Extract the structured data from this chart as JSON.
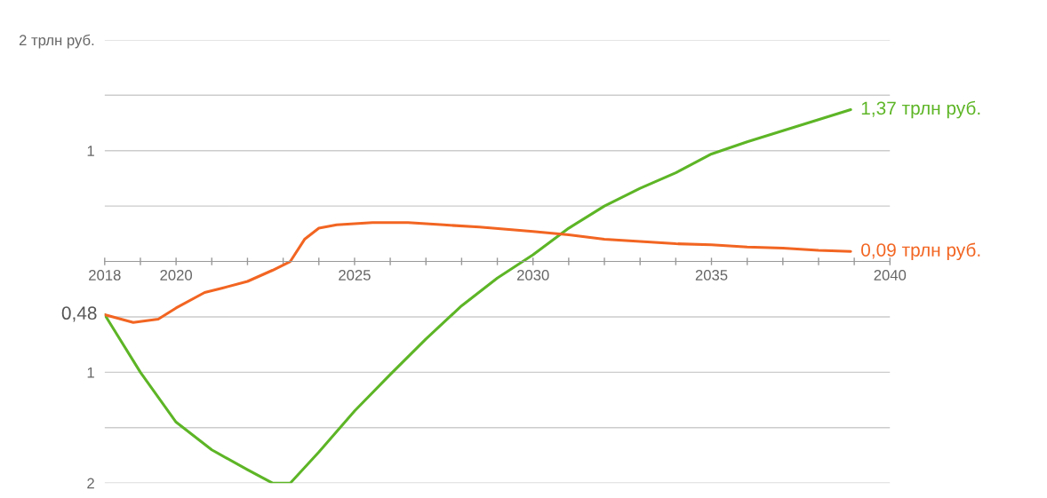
{
  "chart_data": {
    "type": "line",
    "series": [
      {
        "color": "#5db526",
        "x": [
          2018,
          2019,
          2020,
          2021,
          2022,
          2022.7,
          2023.2,
          2024,
          2025,
          2026,
          2027,
          2028,
          2029,
          2030,
          2031,
          2032,
          2033,
          2034,
          2035,
          2036,
          2037,
          2038,
          2038.9
        ],
        "values": [
          -0.48,
          -1.0,
          -1.45,
          -1.7,
          -1.88,
          -2.0,
          -2.0,
          -1.72,
          -1.35,
          -1.02,
          -0.7,
          -0.4,
          -0.15,
          0.06,
          0.3,
          0.5,
          0.66,
          0.8,
          0.97,
          1.08,
          1.18,
          1.28,
          1.37
        ]
      },
      {
        "color": "#f26522",
        "x": [
          2018,
          2018.8,
          2019.5,
          2020,
          2020.8,
          2021.3,
          2022,
          2022.7,
          2023.2,
          2023.6,
          2024,
          2024.5,
          2025.5,
          2026.5,
          2027.5,
          2028.5,
          2030,
          2031,
          2032,
          2033,
          2034,
          2035,
          2036,
          2037,
          2038,
          2038.9
        ],
        "values": [
          -0.48,
          -0.55,
          -0.52,
          -0.42,
          -0.28,
          -0.24,
          -0.18,
          -0.08,
          0.0,
          0.2,
          0.3,
          0.33,
          0.35,
          0.35,
          0.33,
          0.31,
          0.27,
          0.24,
          0.2,
          0.18,
          0.16,
          0.15,
          0.13,
          0.12,
          0.1,
          0.09
        ]
      }
    ],
    "xlim": [
      2018,
      2040
    ],
    "xticks": [
      2018,
      {
        "value": 2019,
        "label": null
      },
      2020,
      {
        "value": 2021,
        "label": null
      },
      {
        "value": 2022,
        "label": null
      },
      {
        "value": 2023,
        "label": null
      },
      {
        "value": 2024,
        "label": null
      },
      2025,
      {
        "value": 2026,
        "label": null
      },
      {
        "value": 2027,
        "label": null
      },
      {
        "value": 2028,
        "label": null
      },
      {
        "value": 2029,
        "label": null
      },
      2030,
      {
        "value": 2031,
        "label": null
      },
      {
        "value": 2032,
        "label": null
      },
      {
        "value": 2033,
        "label": null
      },
      {
        "value": 2034,
        "label": null
      },
      2035,
      {
        "value": 2036,
        "label": null
      },
      {
        "value": 2037,
        "label": null
      },
      {
        "value": 2038,
        "label": null
      },
      {
        "value": 2039,
        "label": null
      },
      2040
    ],
    "ylim": [
      -2,
      2
    ],
    "yticks": [
      {
        "value": -2,
        "label": "2"
      },
      {
        "value": -1.5,
        "label": null
      },
      {
        "value": -1,
        "label": "1"
      },
      {
        "value": -0.5,
        "label": null
      },
      {
        "value": 0.5,
        "label": null
      },
      {
        "value": 1,
        "label": "1"
      },
      {
        "value": 1.5,
        "label": null
      },
      {
        "value": 2,
        "label": "2 трлн руб."
      }
    ],
    "grid": "y",
    "annotations": [
      "0,48",
      "1,37 трлн руб.",
      "0,09 трлн руб."
    ]
  }
}
